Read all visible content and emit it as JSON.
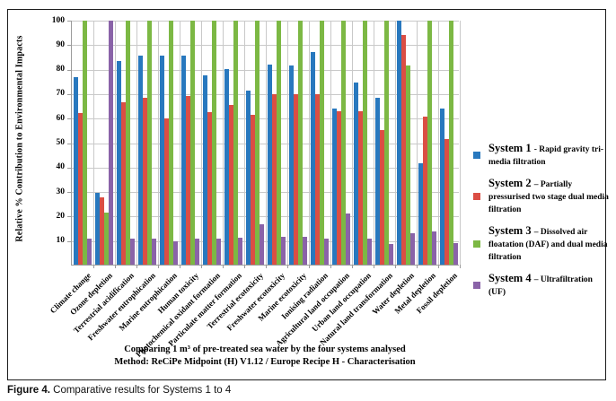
{
  "figure": {
    "caption_label": "Figure 4.",
    "caption_text": " Comparative results for Systems 1 to 4"
  },
  "chart_data": {
    "type": "bar",
    "ylabel": "Relative % Contribution to Environmental Impacts",
    "xlabel": "",
    "ylim": [
      0,
      100
    ],
    "yticks": [
      10,
      20,
      30,
      40,
      50,
      60,
      70,
      80,
      90,
      100
    ],
    "grid": true,
    "legend_position": "right",
    "title_lines": [
      "Comparing 1 m³ of pre-treated sea water by the four systems analysed",
      "Method: ReCiPe Midpoint (H) V1.12 / Europe Recipe H - Characterisation"
    ],
    "categories": [
      "Climate change",
      "Ozone depletion",
      "Terrestrial acidification",
      "Freshwater eutrophication",
      "Marine eutrophication",
      "Human toxicity",
      "Photochemical oxidant formation",
      "Particulate matter formation",
      "Terrestrial ecotoxicity",
      "Freshwater ecotoxicity",
      "Marine ecotoxicity",
      "Ionising radiation",
      "Agricultural land occupation",
      "Urban land occupation",
      "Natural land transformation",
      "Water depletion",
      "Metal depletion",
      "Fossil depletion"
    ],
    "series": [
      {
        "name": "System 1",
        "description": "- Rapid gravity tri-media filtration",
        "color": "#2878be",
        "values": [
          77,
          29.5,
          83.5,
          85.5,
          85.5,
          85.5,
          77.5,
          80,
          71.5,
          82,
          81.5,
          87,
          64,
          74.5,
          68.5,
          100,
          41.5,
          64
        ]
      },
      {
        "name": "System 2",
        "description": "– Partially pressurised two stage dual media filtration",
        "color": "#db4e44",
        "values": [
          62,
          27.5,
          66.5,
          68.5,
          60,
          69,
          62.5,
          65.5,
          61.5,
          70,
          70,
          70,
          63,
          63,
          55,
          94,
          60.5,
          51.5
        ]
      },
      {
        "name": "System 3",
        "description": "– Dissolved air floatation (DAF)  and dual media filtration",
        "color": "#7cb844",
        "values": [
          100,
          21.5,
          100,
          100,
          100,
          100,
          100,
          100,
          100,
          100,
          100,
          100,
          100,
          100,
          100,
          81.5,
          100,
          100
        ]
      },
      {
        "name": "System 4",
        "description": "– Ultrafiltration (UF)",
        "color": "#8a63a8",
        "values": [
          10.5,
          100,
          10.5,
          10.5,
          9.5,
          10.5,
          10.5,
          11,
          16.5,
          11.5,
          11.5,
          10.5,
          21,
          10.5,
          8.5,
          13,
          13.5,
          9
        ]
      }
    ]
  }
}
